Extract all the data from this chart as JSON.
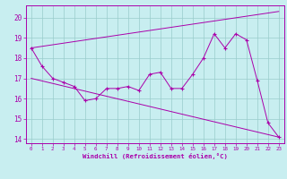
{
  "xlabel": "Windchill (Refroidissement éolien,°C)",
  "background_color": "#c8eef0",
  "line_color": "#aa00aa",
  "grid_color": "#99cccc",
  "xlim": [
    -0.5,
    23.5
  ],
  "ylim": [
    13.8,
    20.6
  ],
  "yticks": [
    14,
    15,
    16,
    17,
    18,
    19,
    20
  ],
  "xticks": [
    0,
    1,
    2,
    3,
    4,
    5,
    6,
    7,
    8,
    9,
    10,
    11,
    12,
    13,
    14,
    15,
    16,
    17,
    18,
    19,
    20,
    21,
    22,
    23
  ],
  "line1_x": [
    0,
    1,
    2,
    3,
    4,
    5,
    6,
    7,
    8,
    9,
    10,
    11,
    12,
    13,
    14,
    15,
    16,
    17,
    18,
    19,
    20,
    21,
    22,
    23
  ],
  "line1_y": [
    18.5,
    17.6,
    17.0,
    16.8,
    16.6,
    15.9,
    16.0,
    16.5,
    16.5,
    16.6,
    16.4,
    17.2,
    17.3,
    16.5,
    16.5,
    17.2,
    18.0,
    19.2,
    18.5,
    19.2,
    18.9,
    16.9,
    14.8,
    14.1
  ],
  "line2_x": [
    0,
    23
  ],
  "line2_y": [
    18.5,
    20.3
  ],
  "line3_x": [
    0,
    23
  ],
  "line3_y": [
    17.0,
    14.1
  ]
}
